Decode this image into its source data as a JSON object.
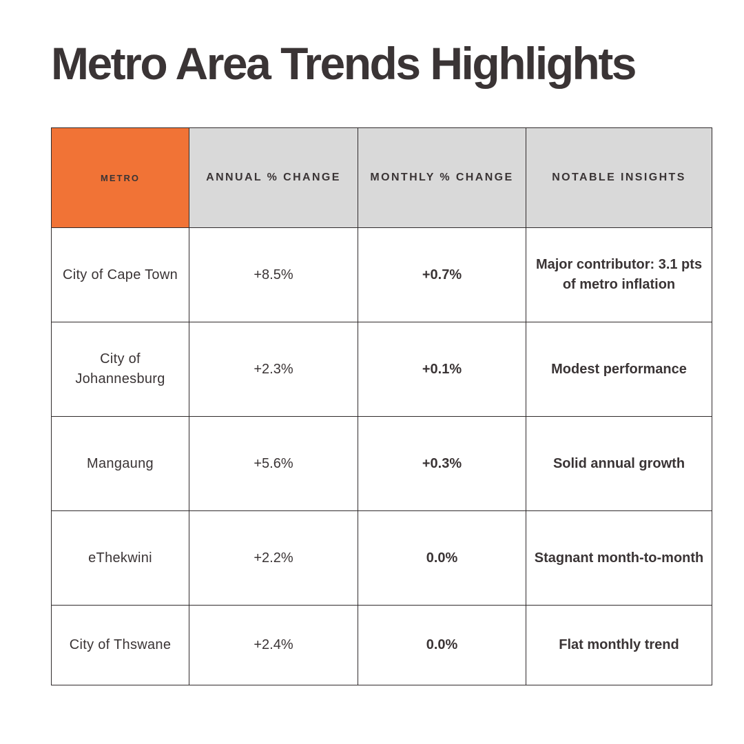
{
  "title": "Metro Area Trends Highlights",
  "colors": {
    "accent": "#f17336",
    "header_bg": "#d9d9d9",
    "text": "#3a3435",
    "border": "#2f2a2b"
  },
  "table": {
    "headers": [
      "METRO",
      "ANNUAL % CHANGE",
      "MONTHLY % CHANGE",
      "NOTABLE INSIGHTS"
    ],
    "rows": [
      {
        "metro": "City of Cape Town",
        "annual": "+8.5%",
        "monthly": "+0.7%",
        "insight": "Major contributor: 3.1 pts of metro inflation"
      },
      {
        "metro": "City of Johannesburg",
        "annual": "+2.3%",
        "monthly": "+0.1%",
        "insight": "Modest performance"
      },
      {
        "metro": "Mangaung",
        "annual": "+5.6%",
        "monthly": "+0.3%",
        "insight": "Solid annual growth"
      },
      {
        "metro": "eThekwini",
        "annual": "+2.2%",
        "monthly": "0.0%",
        "insight": "Stagnant month-to-month"
      },
      {
        "metro": "City of Thswane",
        "annual": "+2.4%",
        "monthly": "0.0%",
        "insight": "Flat monthly trend"
      }
    ]
  }
}
